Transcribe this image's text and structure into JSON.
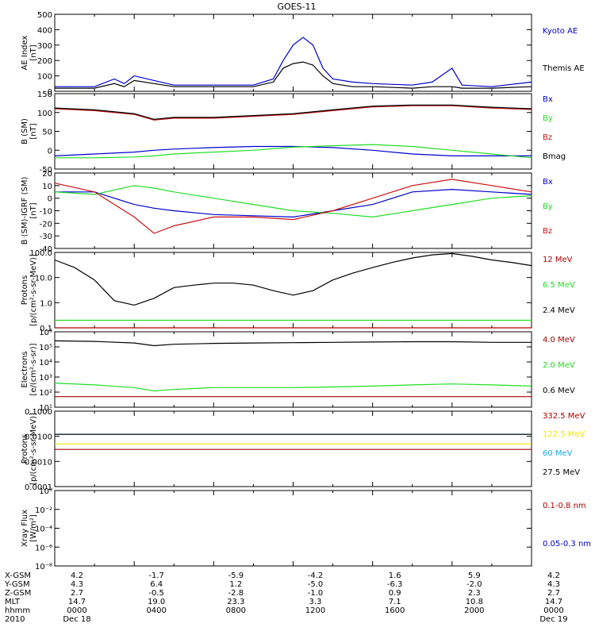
{
  "title": "GOES-11",
  "colors": {
    "black": "#000000",
    "blue": "#0000cc",
    "green": "#22dd22",
    "red": "#cc1111",
    "darkred": "#aa0000",
    "cyan": "#1aa6e8",
    "yellow": "#f2e600"
  },
  "chart_data": [
    {
      "type": "line",
      "panel": "ae_index",
      "ylabel": "AE Index\n[nT]",
      "ylim": [
        0,
        500
      ],
      "yscale": "linear",
      "yticks": [
        0,
        100,
        200,
        300,
        400,
        500
      ],
      "ytick_labels": [
        "0",
        "100",
        "200",
        "300",
        "400",
        "500"
      ],
      "xlim": [
        0,
        24
      ],
      "x": [
        0,
        2,
        3,
        3.5,
        4,
        5,
        6,
        8,
        10,
        11,
        11.5,
        12,
        12.5,
        13,
        13.5,
        14,
        15,
        16,
        18,
        19,
        20,
        20.5,
        22,
        24
      ],
      "series": [
        {
          "name": "Kyoto AE",
          "color": "blue",
          "values": [
            30,
            30,
            80,
            50,
            100,
            70,
            40,
            40,
            40,
            80,
            200,
            300,
            350,
            300,
            150,
            80,
            60,
            50,
            40,
            60,
            150,
            40,
            30,
            60
          ]
        },
        {
          "name": "Themis AE",
          "color": "black",
          "values": [
            20,
            20,
            50,
            30,
            70,
            50,
            30,
            30,
            30,
            60,
            150,
            180,
            190,
            170,
            100,
            50,
            30,
            30,
            20,
            30,
            30,
            20,
            20,
            30
          ]
        }
      ]
    },
    {
      "type": "line",
      "panel": "b_sm",
      "ylabel": "B (SM)\n[nT]",
      "ylim": [
        -50,
        150
      ],
      "yscale": "linear",
      "yticks": [
        -50,
        0,
        50,
        100,
        150
      ],
      "ytick_labels": [
        "-50",
        "0",
        "50",
        "100",
        "150"
      ],
      "xlim": [
        0,
        24
      ],
      "x": [
        0,
        2,
        4,
        5,
        6,
        8,
        10,
        12,
        14,
        16,
        18,
        20,
        22,
        24
      ],
      "series": [
        {
          "name": "Bx",
          "color": "blue",
          "values": [
            -15,
            -10,
            -5,
            0,
            3,
            7,
            10,
            10,
            7,
            0,
            -10,
            -15,
            -15,
            -15
          ]
        },
        {
          "name": "By",
          "color": "green",
          "values": [
            -20,
            -20,
            -18,
            -15,
            -10,
            -5,
            0,
            8,
            12,
            15,
            10,
            0,
            -10,
            -20
          ]
        },
        {
          "name": "Bz",
          "color": "red",
          "values": [
            110,
            105,
            95,
            80,
            85,
            85,
            90,
            95,
            105,
            115,
            118,
            118,
            112,
            108
          ]
        },
        {
          "name": "Bmag",
          "color": "black",
          "values": [
            112,
            107,
            97,
            82,
            87,
            87,
            92,
            97,
            107,
            117,
            120,
            120,
            114,
            110
          ]
        }
      ]
    },
    {
      "type": "line",
      "panel": "b_minus_igrf",
      "ylabel": "B (SM)-IGRF (SM)\n[nT]",
      "ylim": [
        -40,
        20
      ],
      "yscale": "linear",
      "yticks": [
        -40,
        -30,
        -20,
        -10,
        0,
        10,
        20
      ],
      "ytick_labels": [
        "-40",
        "-30",
        "-20",
        "-10",
        "0",
        "10",
        "20"
      ],
      "xlim": [
        0,
        24
      ],
      "x": [
        0,
        2,
        4,
        5,
        6,
        8,
        10,
        12,
        14,
        16,
        18,
        20,
        22,
        24
      ],
      "series": [
        {
          "name": "Bx",
          "color": "blue",
          "values": [
            5,
            5,
            -5,
            -8,
            -10,
            -13,
            -14,
            -15,
            -10,
            -5,
            5,
            7,
            5,
            3
          ]
        },
        {
          "name": "By",
          "color": "green",
          "values": [
            5,
            3,
            10,
            8,
            5,
            0,
            -5,
            -10,
            -12,
            -15,
            -10,
            -5,
            0,
            2
          ]
        },
        {
          "name": "Bz",
          "color": "red",
          "values": [
            12,
            5,
            -15,
            -28,
            -22,
            -15,
            -15,
            -17,
            -10,
            0,
            10,
            15,
            10,
            5
          ]
        }
      ]
    },
    {
      "type": "line",
      "panel": "protons_low",
      "ylabel": "Protons\n[p/(cm²-s-sr-MeV)]",
      "ylim": [
        0.1,
        100
      ],
      "yscale": "log",
      "yticks": [
        0.1,
        1,
        10,
        100
      ],
      "ytick_labels": [
        "0.1",
        "1.0",
        "10.0",
        "100.0"
      ],
      "xlim": [
        0,
        24
      ],
      "x": [
        0,
        1,
        2,
        3,
        4,
        5,
        6,
        7,
        8,
        9,
        10,
        11,
        12,
        13,
        14,
        15,
        16,
        17,
        18,
        19,
        20,
        21,
        22,
        23,
        24
      ],
      "series": [
        {
          "name": "12 MeV",
          "color": "darkred",
          "values": [
            0.1,
            0.1,
            0.1,
            0.1,
            0.1,
            0.1,
            0.1,
            0.1,
            0.1,
            0.1,
            0.1,
            0.1,
            0.1,
            0.1,
            0.1,
            0.1,
            0.1,
            0.1,
            0.1,
            0.1,
            0.1,
            0.1,
            0.1,
            0.1,
            0.1
          ]
        },
        {
          "name": "6.5 MeV",
          "color": "green",
          "values": [
            0.2,
            0.2,
            0.2,
            0.2,
            0.2,
            0.2,
            0.2,
            0.2,
            0.2,
            0.2,
            0.2,
            0.2,
            0.2,
            0.2,
            0.2,
            0.2,
            0.2,
            0.2,
            0.2,
            0.2,
            0.2,
            0.2,
            0.2,
            0.2,
            0.2
          ]
        },
        {
          "name": "2.4 MeV",
          "color": "black",
          "values": [
            50,
            25,
            8,
            1.2,
            0.8,
            1.5,
            4,
            5,
            6,
            6,
            5,
            3,
            2,
            3,
            8,
            15,
            25,
            40,
            60,
            80,
            90,
            70,
            50,
            40,
            30
          ]
        }
      ]
    },
    {
      "type": "line",
      "panel": "electrons",
      "ylabel": "Electrons\n[e/(cm²-s-sr)]",
      "ylim": [
        10,
        1000000
      ],
      "yscale": "log",
      "yticks": [
        10,
        100,
        1000,
        10000,
        100000,
        1000000
      ],
      "ytick_labels": [
        "10¹",
        "10²",
        "10³",
        "10⁴",
        "10⁵",
        "10⁶"
      ],
      "xlim": [
        0,
        24
      ],
      "x": [
        0,
        2,
        4,
        5,
        6,
        8,
        10,
        12,
        14,
        16,
        18,
        20,
        22,
        24
      ],
      "series": [
        {
          "name": "4.0 MeV",
          "color": "darkred",
          "values": [
            50,
            50,
            50,
            50,
            50,
            50,
            50,
            50,
            50,
            50,
            50,
            50,
            50,
            50
          ]
        },
        {
          "name": "2.0 MeV",
          "color": "green",
          "values": [
            400,
            300,
            200,
            120,
            150,
            200,
            200,
            200,
            220,
            250,
            300,
            350,
            300,
            250
          ]
        },
        {
          "name": "0.6 MeV",
          "color": "black",
          "values": [
            250000,
            230000,
            180000,
            120000,
            150000,
            170000,
            180000,
            190000,
            200000,
            210000,
            220000,
            220000,
            200000,
            200000
          ]
        }
      ]
    },
    {
      "type": "line",
      "panel": "protons_high",
      "ylabel": "Protons\n[p/(cm²-s-sr-MeV)]",
      "ylim": [
        0.0001,
        0.1
      ],
      "yscale": "log",
      "yticks": [
        0.0001,
        0.001,
        0.01,
        0.1
      ],
      "ytick_labels": [
        "0.0001",
        "0.0010",
        "0.0100",
        "0.1000"
      ],
      "xlim": [
        0,
        24
      ],
      "x": [
        0,
        6,
        12,
        18,
        24
      ],
      "series": [
        {
          "name": "332.5 MeV",
          "color": "darkred",
          "values": [
            0.003,
            0.003,
            0.003,
            0.003,
            0.003
          ]
        },
        {
          "name": "122.5 MeV",
          "color": "yellow",
          "values": [
            0.005,
            0.005,
            0.005,
            0.005,
            0.005
          ]
        },
        {
          "name": "60 MeV",
          "color": "cyan",
          "values": [
            0.012,
            0.012,
            0.012,
            0.012,
            0.012
          ]
        },
        {
          "name": "27.5 MeV",
          "color": "black",
          "values": [
            0.012,
            0.012,
            0.012,
            0.012,
            0.012
          ]
        }
      ]
    },
    {
      "type": "line",
      "panel": "xray",
      "ylabel": "Xray Flux\n[W/m²]",
      "ylim": [
        1e-08,
        1
      ],
      "yscale": "log",
      "yticks": [
        1e-08,
        1e-06,
        0.0001,
        0.01,
        1
      ],
      "ytick_labels": [
        "10⁻⁸",
        "10⁻⁶",
        "10⁻⁴",
        "10⁻²",
        "10⁰"
      ],
      "xlim": [
        0,
        24
      ],
      "x": [],
      "series": [
        {
          "name": "0.1-0.8 nm",
          "color": "darkred",
          "values": []
        },
        {
          "name": "0.05-0.3 nm",
          "color": "blue",
          "values": []
        }
      ]
    }
  ],
  "footer": {
    "row_labels": [
      "X-GSM",
      "Y-GSM",
      "Z-GSM",
      "MLT",
      "hhmm",
      "2010"
    ],
    "columns": [
      [
        "4.2",
        "4.3",
        "2.7",
        "14.7",
        "0000",
        "Dec 18"
      ],
      [
        "-1.7",
        "6.4",
        "-0.5",
        "19.0",
        "0400",
        ""
      ],
      [
        "-5.9",
        "1.2",
        "-2.8",
        "23.3",
        "0800",
        ""
      ],
      [
        "-4.2",
        "-5.0",
        "-1.0",
        "3.3",
        "1200",
        ""
      ],
      [
        "1.6",
        "-6.3",
        "0.9",
        "7.1",
        "1600",
        ""
      ],
      [
        "5.9",
        "-2.0",
        "2.3",
        "10.8",
        "2000",
        ""
      ],
      [
        "4.2",
        "4.3",
        "2.7",
        "14.7",
        "0000",
        "Dec 19"
      ]
    ]
  }
}
